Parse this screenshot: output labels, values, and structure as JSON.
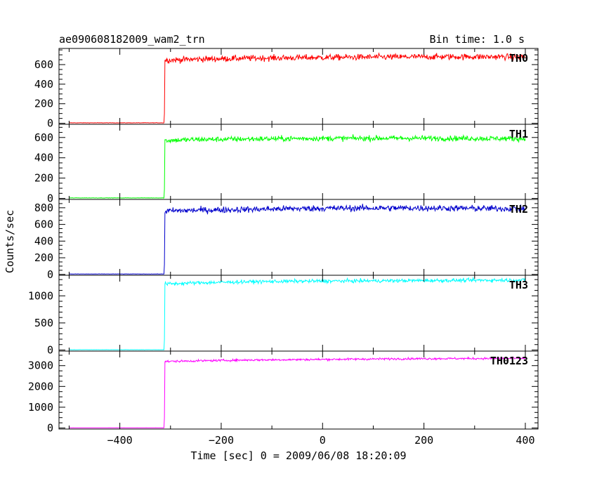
{
  "header": {
    "title": "ae090608182009_wam2_trn",
    "bin_time": "Bin time: 1.0 s"
  },
  "chart_data": {
    "type": "line",
    "title": "ae090608182009_wam2_trn",
    "xlabel": "Time [sec] 0 = 2009/06/08 18:20:09",
    "ylabel": "Counts/sec",
    "xlim": [
      -520,
      425
    ],
    "x_ticks": [
      -400,
      -200,
      0,
      200,
      400
    ],
    "x_tick_labels": [
      "−400",
      "−200",
      "0",
      "200",
      "400"
    ],
    "grid": false,
    "trigger_onset_x": -311,
    "data_x_range": [
      -500,
      400
    ],
    "panels": [
      {
        "label": "TH0",
        "color": "#ff0000",
        "ylim": [
          -10,
          765
        ],
        "y_ticks": [
          0,
          200,
          400,
          600
        ],
        "y_tick_labels": [
          "0",
          "200",
          "400",
          "600"
        ],
        "pre_level": 5,
        "post_series": {
          "x": [
            -310,
            -250,
            -150,
            -50,
            50,
            150,
            250,
            350,
            400
          ],
          "y": [
            645,
            655,
            665,
            670,
            675,
            678,
            680,
            680,
            680
          ]
        },
        "noise_amplitude": 28
      },
      {
        "label": "TH1",
        "color": "#00ff00",
        "ylim": [
          -10,
          730
        ],
        "y_ticks": [
          0,
          200,
          400,
          600
        ],
        "y_tick_labels": [
          "0",
          "200",
          "400",
          "600"
        ],
        "pre_level": 5,
        "post_series": {
          "x": [
            -310,
            -250,
            -150,
            -50,
            50,
            150,
            250,
            350,
            400
          ],
          "y": [
            570,
            580,
            585,
            590,
            592,
            593,
            592,
            590,
            588
          ]
        },
        "noise_amplitude": 24
      },
      {
        "label": "TH2",
        "color": "#0000cc",
        "ylim": [
          -10,
          900
        ],
        "y_ticks": [
          0,
          200,
          400,
          600,
          800
        ],
        "y_tick_labels": [
          "0",
          "200",
          "400",
          "600",
          "800"
        ],
        "pre_level": 5,
        "post_series": {
          "x": [
            -310,
            -250,
            -150,
            -50,
            50,
            150,
            250,
            350,
            400
          ],
          "y": [
            760,
            770,
            780,
            790,
            795,
            797,
            795,
            790,
            788
          ]
        },
        "noise_amplitude": 34
      },
      {
        "label": "TH3",
        "color": "#00ffff",
        "ylim": [
          -20,
          1380
        ],
        "y_ticks": [
          0,
          500,
          1000
        ],
        "y_tick_labels": [
          "0",
          "500",
          "1000"
        ],
        "pre_level": 5,
        "post_series": {
          "x": [
            -310,
            -250,
            -150,
            -50,
            50,
            150,
            250,
            350,
            400
          ],
          "y": [
            1220,
            1240,
            1260,
            1270,
            1275,
            1280,
            1285,
            1290,
            1290
          ]
        },
        "noise_amplitude": 30
      },
      {
        "label": "TH0123",
        "color": "#ff00ff",
        "ylim": [
          -50,
          3700
        ],
        "y_ticks": [
          0,
          1000,
          2000,
          3000
        ],
        "y_tick_labels": [
          "0",
          "1000",
          "2000",
          "3000"
        ],
        "pre_level": 10,
        "post_series": {
          "x": [
            -310,
            -250,
            -150,
            -50,
            50,
            150,
            250,
            350,
            400
          ],
          "y": [
            3200,
            3230,
            3270,
            3290,
            3310,
            3330,
            3340,
            3345,
            3345
          ]
        },
        "noise_amplitude": 45
      }
    ]
  }
}
